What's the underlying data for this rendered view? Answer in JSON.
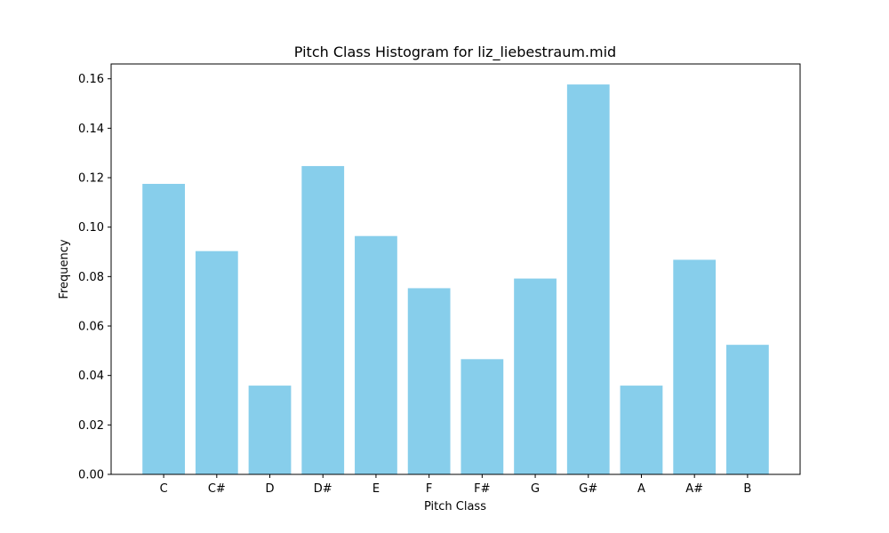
{
  "chart_data": {
    "type": "bar",
    "title": "Pitch Class Histogram for liz_liebestraum.mid",
    "xlabel": "Pitch Class",
    "ylabel": "Frequency",
    "categories": [
      "C",
      "C#",
      "D",
      "D#",
      "E",
      "F",
      "F#",
      "G",
      "G#",
      "A",
      "A#",
      "B"
    ],
    "values": [
      0.1175,
      0.0903,
      0.0359,
      0.1247,
      0.0964,
      0.0753,
      0.0466,
      0.0792,
      0.1577,
      0.0359,
      0.0868,
      0.0524
    ],
    "ylim": [
      0,
      0.166
    ],
    "yticks": [
      "0.00",
      "0.02",
      "0.04",
      "0.06",
      "0.08",
      "0.10",
      "0.12",
      "0.14",
      "0.16"
    ],
    "grid": false,
    "bar_color": "#87CEEB"
  }
}
